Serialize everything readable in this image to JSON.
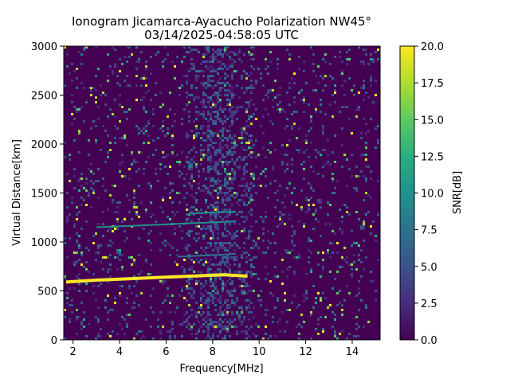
{
  "chart_data": {
    "type": "heatmap",
    "title": "Ionogram Jicamarca-Ayacucho Polarization NW45°",
    "subtitle": "03/14/2025-04:58:05 UTC",
    "xlabel": "Frequency[MHz]",
    "ylabel": "Virtual Distance[km]",
    "xlim": [
      1.6,
      15.2
    ],
    "ylim": [
      0,
      3000
    ],
    "x_ticks": [
      "2",
      "4",
      "6",
      "8",
      "10",
      "12",
      "14"
    ],
    "x_tick_values": [
      2,
      4,
      6,
      8,
      10,
      12,
      14
    ],
    "y_ticks": [
      "0",
      "500",
      "1000",
      "1500",
      "2000",
      "2500",
      "3000"
    ],
    "y_tick_values": [
      0,
      500,
      1000,
      1500,
      2000,
      2500,
      3000
    ],
    "colorbar": {
      "label": "SNR[dB]",
      "range": [
        0,
        20
      ],
      "ticks": [
        "0.0",
        "2.5",
        "5.0",
        "7.5",
        "10.0",
        "12.5",
        "15.0",
        "17.5",
        "20.0"
      ],
      "tick_values": [
        0,
        2.5,
        5,
        7.5,
        10,
        12.5,
        15,
        17.5,
        20
      ],
      "colormap": "viridis"
    },
    "traces": [
      {
        "x": [
          1.7,
          3,
          4,
          5,
          6,
          7,
          8,
          8.5,
          9.5
        ],
        "y": [
          590,
          610,
          620,
          630,
          640,
          650,
          660,
          665,
          650
        ],
        "snr": 20
      },
      {
        "x": [
          3,
          4,
          5,
          6,
          7,
          8,
          9
        ],
        "y": [
          1150,
          1160,
          1170,
          1180,
          1190,
          1200,
          1210
        ],
        "snr": 10
      },
      {
        "x": [
          7,
          8,
          9
        ],
        "y": [
          1290,
          1300,
          1310
        ],
        "snr": 9
      },
      {
        "x": [
          6.5,
          7.5,
          8.5,
          9
        ],
        "y": [
          850,
          860,
          870,
          880
        ],
        "snr": 8
      }
    ],
    "grid": false
  }
}
